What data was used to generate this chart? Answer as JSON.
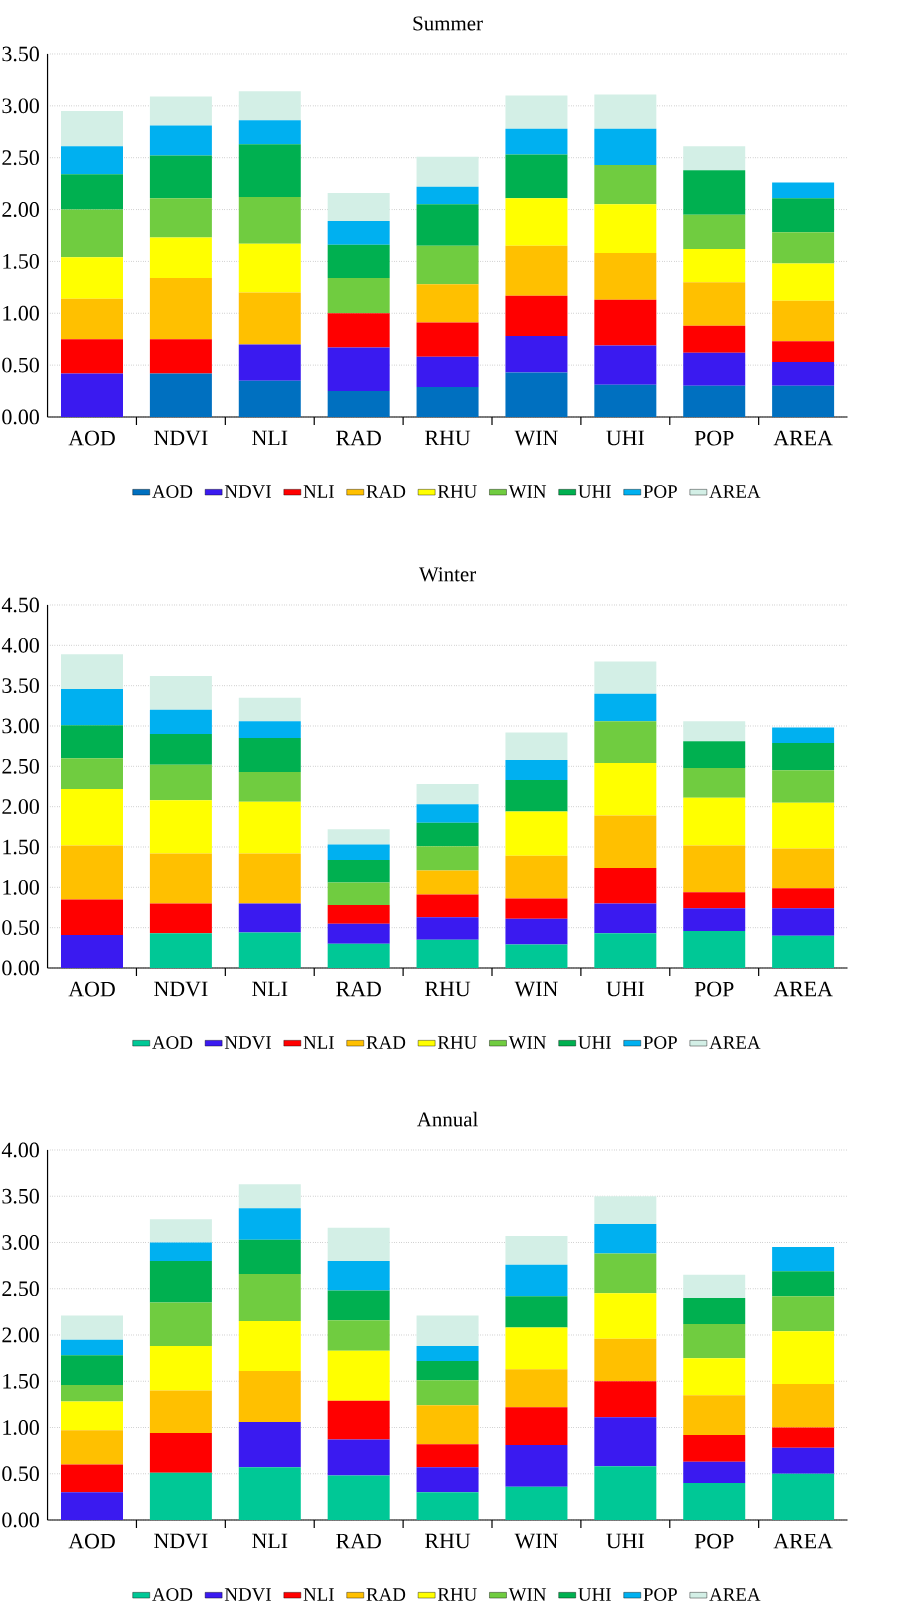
{
  "chart_data": [
    {
      "type": "bar",
      "stacked": true,
      "title": "Summer",
      "categories": [
        "AOD",
        "NDVI",
        "NLI",
        "RAD",
        "RHU",
        "WIN",
        "UHI",
        "POP",
        "AREA"
      ],
      "series": [
        {
          "name": "AOD",
          "color": "#0070c0",
          "values": [
            0,
            0.42,
            0.35,
            0.25,
            0.29,
            0.43,
            0.31,
            0.3,
            0.3
          ]
        },
        {
          "name": "NDVI",
          "color": "#3a1af0",
          "values": [
            0.42,
            0,
            0.35,
            0.42,
            0.29,
            0.35,
            0.38,
            0.32,
            0.23
          ]
        },
        {
          "name": "NLI",
          "color": "#ff0000",
          "values": [
            0.33,
            0.33,
            0,
            0.33,
            0.33,
            0.39,
            0.44,
            0.26,
            0.2
          ]
        },
        {
          "name": "RAD",
          "color": "#ffc000",
          "values": [
            0.39,
            0.59,
            0.5,
            0,
            0.37,
            0.48,
            0.45,
            0.42,
            0.39
          ]
        },
        {
          "name": "RHU",
          "color": "#ffff00",
          "values": [
            0.4,
            0.39,
            0.47,
            0,
            0,
            0.46,
            0.47,
            0.32,
            0.36
          ]
        },
        {
          "name": "WIN",
          "color": "#70cc40",
          "values": [
            0.46,
            0.38,
            0.45,
            0.34,
            0.37,
            0,
            0.38,
            0.33,
            0.3
          ]
        },
        {
          "name": "UHI",
          "color": "#00b050",
          "values": [
            0.34,
            0.41,
            0.51,
            0.32,
            0.4,
            0.42,
            0,
            0.43,
            0.33
          ]
        },
        {
          "name": "POP",
          "color": "#00b0f0",
          "values": [
            0.27,
            0.29,
            0.23,
            0.23,
            0.17,
            0.25,
            0.35,
            0,
            0.15
          ]
        },
        {
          "name": "AREA",
          "color": "#d3efe6",
          "values": [
            0.34,
            0.28,
            0.28,
            0.27,
            0.29,
            0.32,
            0.33,
            0.23,
            0
          ]
        }
      ],
      "ylim": [
        0,
        3.5
      ],
      "yticks": [
        {
          "value": 0,
          "label": "0.00"
        },
        {
          "value": 0.5,
          "label": "0.50"
        },
        {
          "value": 1,
          "label": "1.00"
        },
        {
          "value": 1.5,
          "label": "1.50"
        },
        {
          "value": 2,
          "label": "2.00"
        },
        {
          "value": 2.5,
          "label": "2.50"
        },
        {
          "value": 3,
          "label": "3.00"
        },
        {
          "value": 3.5,
          "label": "3.50"
        }
      ],
      "grid": "y",
      "legend": "bottom"
    },
    {
      "type": "bar",
      "stacked": true,
      "title": "Winter",
      "categories": [
        "AOD",
        "NDVI",
        "NLI",
        "RAD",
        "RHU",
        "WIN",
        "UHI",
        "POP",
        "AREA"
      ],
      "series": [
        {
          "name": "AOD",
          "color": "#00c896",
          "values": [
            0,
            0.43,
            0.44,
            0.3,
            0.35,
            0.29,
            0.43,
            0.46,
            0.4
          ]
        },
        {
          "name": "NDVI",
          "color": "#3a1af0",
          "values": [
            0.41,
            0,
            0.36,
            0.25,
            0.28,
            0.32,
            0.37,
            0.28,
            0.34
          ]
        },
        {
          "name": "NLI",
          "color": "#ff0000",
          "values": [
            0.44,
            0.37,
            0,
            0.23,
            0.28,
            0.25,
            0.44,
            0.2,
            0.25
          ]
        },
        {
          "name": "RAD",
          "color": "#ffc000",
          "values": [
            0.67,
            0.62,
            0.62,
            0,
            0.3,
            0.53,
            0.65,
            0.58,
            0.49
          ]
        },
        {
          "name": "RHU",
          "color": "#ffff00",
          "values": [
            0.7,
            0.66,
            0.64,
            0,
            0,
            0.55,
            0.65,
            0.59,
            0.57
          ]
        },
        {
          "name": "WIN",
          "color": "#70cc40",
          "values": [
            0.38,
            0.44,
            0.37,
            0.28,
            0.3,
            0,
            0.52,
            0.37,
            0.4
          ]
        },
        {
          "name": "UHI",
          "color": "#00b050",
          "values": [
            0.41,
            0.38,
            0.42,
            0.28,
            0.29,
            0.39,
            0,
            0.33,
            0.34
          ]
        },
        {
          "name": "POP",
          "color": "#00b0f0",
          "values": [
            0.45,
            0.3,
            0.21,
            0.19,
            0.23,
            0.25,
            0.34,
            0,
            0.19
          ]
        },
        {
          "name": "AREA",
          "color": "#d3efe6",
          "values": [
            0.43,
            0.42,
            0.29,
            0.19,
            0.25,
            0.34,
            0.4,
            0.25,
            0
          ]
        }
      ],
      "ylim": [
        0,
        4.5
      ],
      "yticks": [
        {
          "value": 0,
          "label": "0.00"
        },
        {
          "value": 0.5,
          "label": "0.50"
        },
        {
          "value": 1,
          "label": "1.00"
        },
        {
          "value": 1.5,
          "label": "1.50"
        },
        {
          "value": 2,
          "label": "2.00"
        },
        {
          "value": 2.5,
          "label": "2.50"
        },
        {
          "value": 3,
          "label": "3.00"
        },
        {
          "value": 3.5,
          "label": "3.50"
        },
        {
          "value": 4,
          "label": "4.00"
        },
        {
          "value": 4.5,
          "label": "4.50"
        }
      ],
      "grid": "y",
      "legend": "bottom"
    },
    {
      "type": "bar",
      "stacked": true,
      "title": "Annual",
      "categories": [
        "AOD",
        "NDVI",
        "NLI",
        "RAD",
        "RHU",
        "WIN",
        "UHI",
        "POP",
        "AREA"
      ],
      "series": [
        {
          "name": "AOD",
          "color": "#00c896",
          "values": [
            0,
            0.51,
            0.57,
            0.48,
            0.3,
            0.36,
            0.58,
            0.4,
            0.5
          ]
        },
        {
          "name": "NDVI",
          "color": "#3a1af0",
          "values": [
            0.3,
            0,
            0.49,
            0.39,
            0.27,
            0.45,
            0.53,
            0.23,
            0.28
          ]
        },
        {
          "name": "NLI",
          "color": "#ff0000",
          "values": [
            0.3,
            0.43,
            0,
            0.42,
            0.25,
            0.41,
            0.39,
            0.29,
            0.22
          ]
        },
        {
          "name": "RAD",
          "color": "#ffc000",
          "values": [
            0.37,
            0.46,
            0.55,
            0,
            0.42,
            0.41,
            0.46,
            0.43,
            0.47
          ]
        },
        {
          "name": "RHU",
          "color": "#ffff00",
          "values": [
            0.31,
            0.48,
            0.54,
            0.54,
            0,
            0.45,
            0.49,
            0.4,
            0.57
          ]
        },
        {
          "name": "WIN",
          "color": "#70cc40",
          "values": [
            0.18,
            0.47,
            0.51,
            0.33,
            0.27,
            0,
            0.43,
            0.37,
            0.38
          ]
        },
        {
          "name": "UHI",
          "color": "#00b050",
          "values": [
            0.32,
            0.45,
            0.37,
            0.32,
            0.21,
            0.34,
            0,
            0.28,
            0.27
          ]
        },
        {
          "name": "POP",
          "color": "#00b0f0",
          "values": [
            0.17,
            0.2,
            0.34,
            0.32,
            0.16,
            0.34,
            0.32,
            0,
            0.26
          ]
        },
        {
          "name": "AREA",
          "color": "#d3efe6",
          "values": [
            0.26,
            0.25,
            0.26,
            0.36,
            0.33,
            0.31,
            0.3,
            0.25,
            0
          ]
        }
      ],
      "ylim": [
        0,
        4
      ],
      "yticks": [
        {
          "value": 0,
          "label": "0.00"
        },
        {
          "value": 0.5,
          "label": "0.50"
        },
        {
          "value": 1,
          "label": "1.00"
        },
        {
          "value": 1.5,
          "label": "1.50"
        },
        {
          "value": 2,
          "label": "2.00"
        },
        {
          "value": 2.5,
          "label": "2.50"
        },
        {
          "value": 3,
          "label": "3.00"
        },
        {
          "value": 3.5,
          "label": "3.50"
        },
        {
          "value": 4,
          "label": "4.00"
        }
      ],
      "grid": "y",
      "legend": "bottom"
    }
  ]
}
